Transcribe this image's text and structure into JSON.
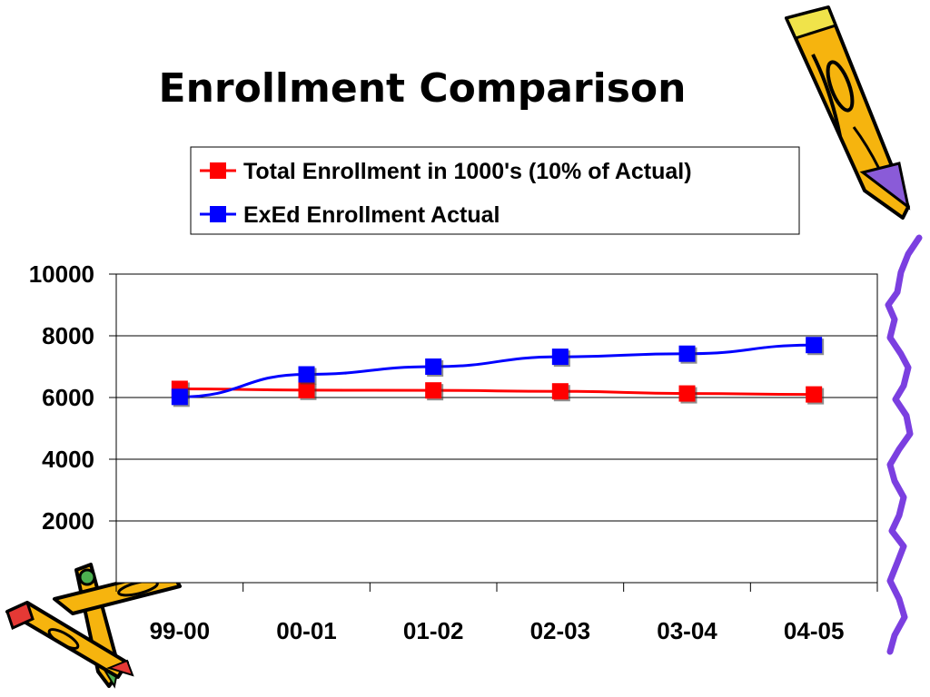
{
  "title": "Enrollment Comparison",
  "chart_data": {
    "type": "line",
    "categories": [
      "99-00",
      "00-01",
      "01-02",
      "02-03",
      "03-04",
      "04-05"
    ],
    "series": [
      {
        "name": "Total Enrollment in 1000's (10% of Actual)",
        "color": "#ff0000",
        "values": [
          6280,
          6240,
          6230,
          6200,
          6130,
          6100
        ]
      },
      {
        "name": "ExEd Enrollment Actual",
        "color": "#0000ff",
        "values": [
          6020,
          6750,
          7000,
          7320,
          7420,
          7700
        ]
      }
    ],
    "y_ticks": [
      "2000",
      "4000",
      "6000",
      "8000",
      "10000"
    ],
    "ylim": [
      0,
      10000
    ],
    "grid": true,
    "legend_position": "top"
  },
  "decorations": [
    "pencil-clipart-top-right",
    "pencils-clipart-bottom-left",
    "purple-squiggle-border"
  ]
}
